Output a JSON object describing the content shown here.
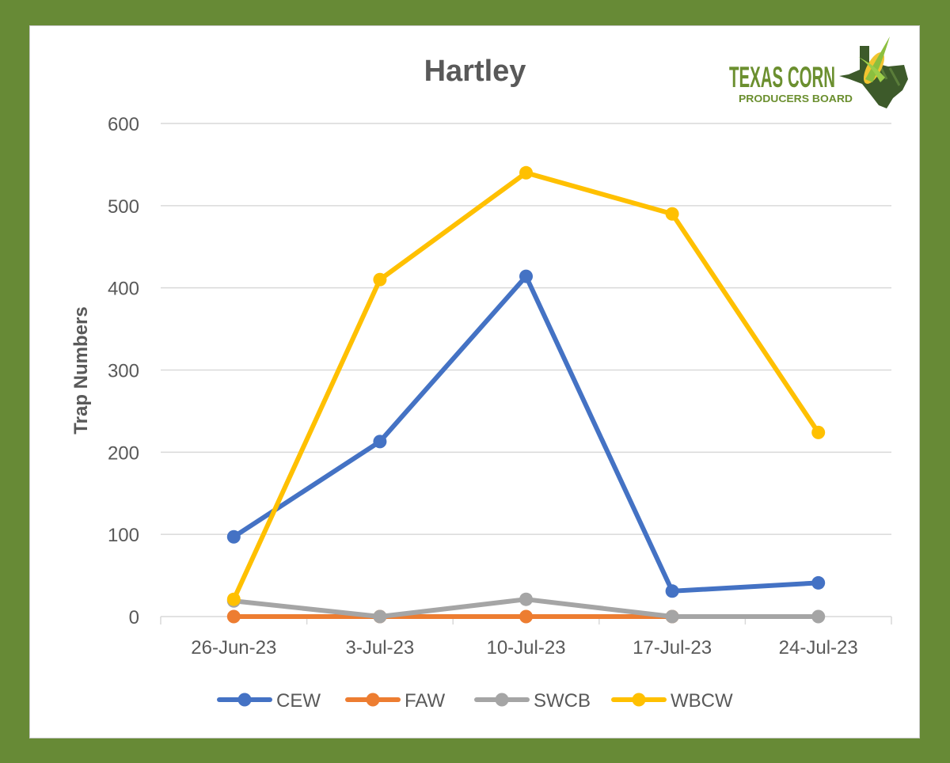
{
  "logo": {
    "line1": "TEXAS CORN",
    "line2": "PRODUCERS BOARD"
  },
  "colors": {
    "frame": "#678a36",
    "CEW": "#4472c4",
    "FAW": "#ed7d31",
    "SWCB": "#a5a5a5",
    "WBCW": "#ffc000",
    "grid": "#d9d9d9",
    "text": "#595959"
  },
  "chart_data": {
    "type": "line",
    "title": "Hartley",
    "xlabel": "",
    "ylabel": "Trap Numbers",
    "categories": [
      "26-Jun-23",
      "3-Jul-23",
      "10-Jul-23",
      "17-Jul-23",
      "24-Jul-23"
    ],
    "ylim": [
      0,
      600
    ],
    "yticks": [
      0,
      100,
      200,
      300,
      400,
      500,
      600
    ],
    "grid": true,
    "legend_position": "bottom",
    "series": [
      {
        "name": "CEW",
        "values": [
          97,
          213,
          414,
          31,
          41
        ]
      },
      {
        "name": "FAW",
        "values": [
          0,
          0,
          0,
          0,
          null
        ]
      },
      {
        "name": "SWCB",
        "values": [
          19,
          0,
          21,
          0,
          0
        ]
      },
      {
        "name": "WBCW",
        "values": [
          21,
          410,
          540,
          490,
          224
        ]
      }
    ]
  }
}
